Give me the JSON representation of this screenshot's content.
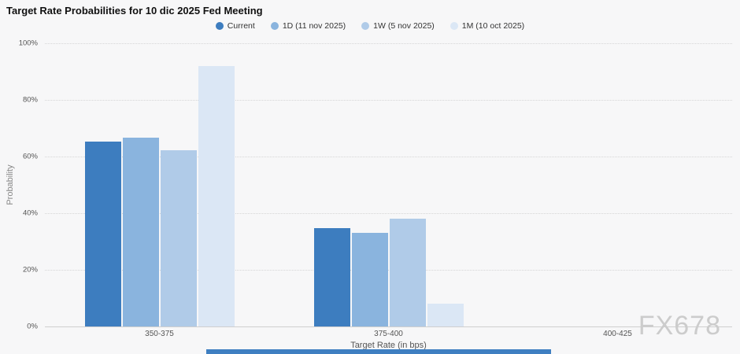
{
  "watermark": "FX678",
  "chart_data": {
    "type": "bar",
    "title": "Target Rate Probabilities for 10 dic 2025 Fed Meeting",
    "xlabel": "Target Rate (in bps)",
    "ylabel": "Probability",
    "categories": [
      "350-375",
      "375-400",
      "400-425"
    ],
    "series": [
      {
        "name": "Current",
        "color": "#3d7dbf",
        "values": [
          65.3,
          34.6,
          0
        ]
      },
      {
        "name": "1D (11 nov 2025)",
        "color": "#8ab4de",
        "values": [
          66.8,
          33.1,
          0
        ]
      },
      {
        "name": "1W (5 nov 2025)",
        "color": "#b0cbe8",
        "values": [
          62.1,
          38.0,
          0
        ]
      },
      {
        "name": "1M (10 oct 2025)",
        "color": "#dbe7f5",
        "values": [
          91.9,
          8.1,
          0
        ]
      }
    ],
    "ylim": [
      0,
      100
    ],
    "yticks": [
      "0%",
      "20%",
      "40%",
      "60%",
      "80%",
      "100%"
    ],
    "grid": "horizontal-dotted",
    "legend_position": "top-center"
  }
}
